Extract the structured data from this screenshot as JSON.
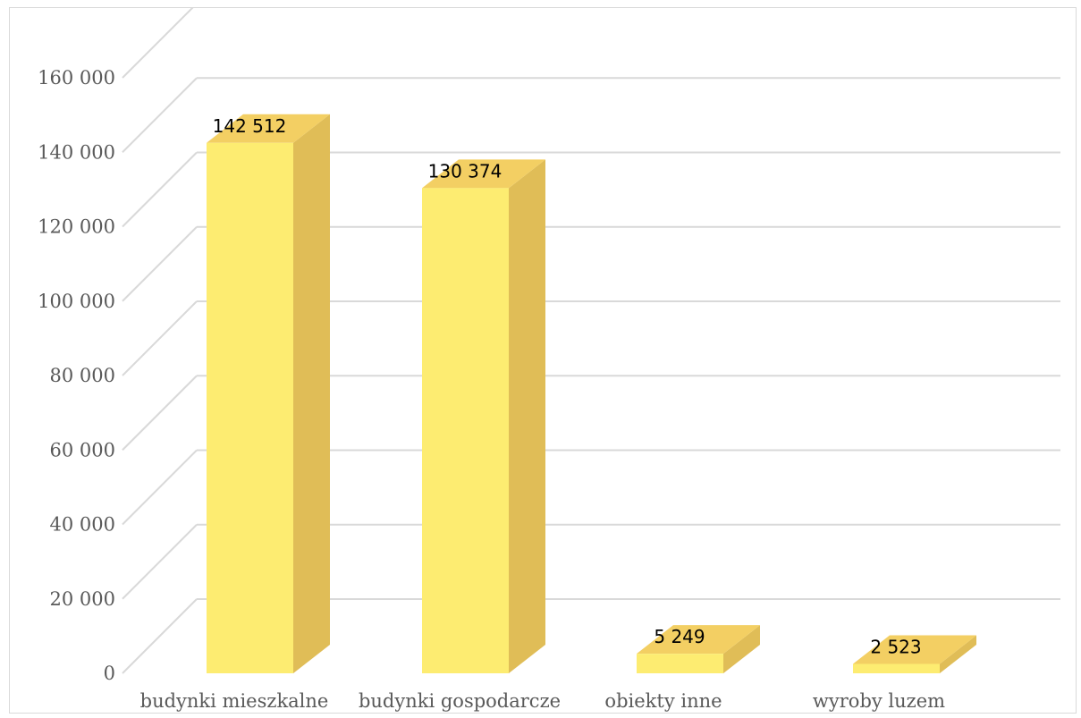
{
  "chart_data": {
    "type": "bar",
    "style": "3d-column",
    "categories": [
      "budynki mieszkalne",
      "budynki gospodarcze",
      "obiekty inne",
      "wyroby luzem"
    ],
    "values": [
      142512,
      130374,
      5249,
      2523
    ],
    "value_labels": [
      "142 512",
      "130 374",
      "5 249",
      "2 523"
    ],
    "ylim": [
      0,
      160000
    ],
    "yticks": [
      0,
      20000,
      40000,
      60000,
      80000,
      100000,
      120000,
      140000,
      160000
    ],
    "ytick_labels": [
      "0",
      "20 000",
      "40 000",
      "60 000",
      "80 000",
      "100 000",
      "120 000",
      "140 000",
      "160 000"
    ],
    "grid": true,
    "legend": "none",
    "colors": {
      "front": "#fdec71",
      "side": "#e0bd57",
      "top": "#f3cf63",
      "grid": "#d9d9d9"
    }
  }
}
